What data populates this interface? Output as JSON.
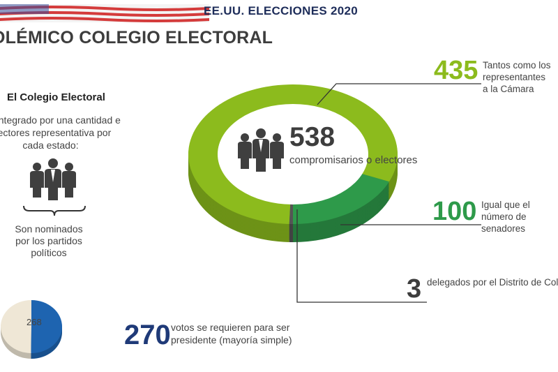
{
  "header": {
    "title": "EE.UU. ELECCIONES 2020"
  },
  "main_title": "OLÉMICO COLEGIO ELECTORAL",
  "sidebar": {
    "heading": "El Colegio Electoral",
    "text": "stá integrado por una cantidad e electores representativa por cada estado:",
    "note": "Son nominados por los partidos políticos"
  },
  "center": {
    "number": "538",
    "label": "compromisarios o electores"
  },
  "segments": [
    {
      "number": "435",
      "text": "Tantos como los representantes a la Cámara",
      "color": "#8cbb1d"
    },
    {
      "number": "100",
      "text": "Igual que el número de senadores",
      "color": "#2e9a4a"
    },
    {
      "number": "3",
      "text": "delegados por el Distrito de Colu (Washington, capital del país)",
      "color": "#555555"
    }
  ],
  "majority": {
    "number": "270",
    "text": "votos se requieren para ser presidente (mayoría simple)",
    "other_value": "268",
    "color": "#1e64b0"
  },
  "chart_data": [
    {
      "type": "pie",
      "title": "",
      "categories": [
        "435",
        "100",
        "3"
      ],
      "values": [
        435,
        100,
        3
      ],
      "total": 538
    },
    {
      "type": "pie",
      "title": "",
      "categories": [
        "268",
        "270"
      ],
      "values": [
        268,
        270
      ]
    }
  ]
}
